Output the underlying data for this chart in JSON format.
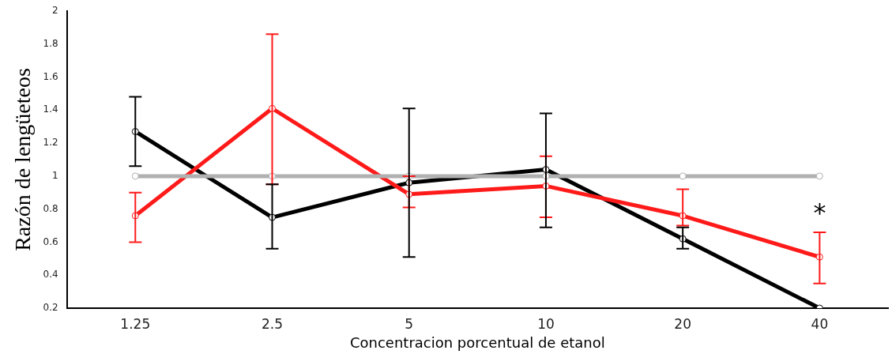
{
  "chart_data": {
    "type": "line",
    "xlabel": "Concentracion porcentual de etanol",
    "ylabel": "Razón de lengüeteos",
    "categories": [
      "1.25",
      "2.5",
      "5",
      "10",
      "20",
      "40"
    ],
    "series": [
      {
        "color": "#b0b0b0",
        "values": [
          1,
          1,
          1,
          1,
          1,
          1
        ]
      },
      {
        "color": "#ff1a1a",
        "values": [
          0.76,
          1.41,
          0.89,
          0.94,
          0.76,
          0.51
        ],
        "errors": [
          [
            0.6,
            0.9
          ],
          [
            0.95,
            1.86
          ],
          [
            0.81,
            1.0
          ],
          [
            0.75,
            1.12
          ],
          [
            0.7,
            0.92
          ],
          [
            0.35,
            0.66
          ]
        ]
      },
      {
        "color": "#000000",
        "values": [
          1.27,
          0.75,
          0.96,
          1.04,
          0.62,
          0.2
        ],
        "errors": [
          [
            1.06,
            1.48
          ],
          [
            0.56,
            0.95
          ],
          [
            0.51,
            1.41
          ],
          [
            0.69,
            1.38
          ],
          [
            0.56,
            0.69
          ],
          null
        ]
      }
    ],
    "ylim": [
      0.2,
      2
    ],
    "yticks": [
      0.2,
      0.4,
      0.6,
      0.8,
      1,
      1.2,
      1.4,
      1.6,
      1.8,
      2
    ],
    "annotations": [
      "*"
    ],
    "grid": false,
    "legend": false,
    "marker": "circle",
    "line_style": "solid"
  }
}
